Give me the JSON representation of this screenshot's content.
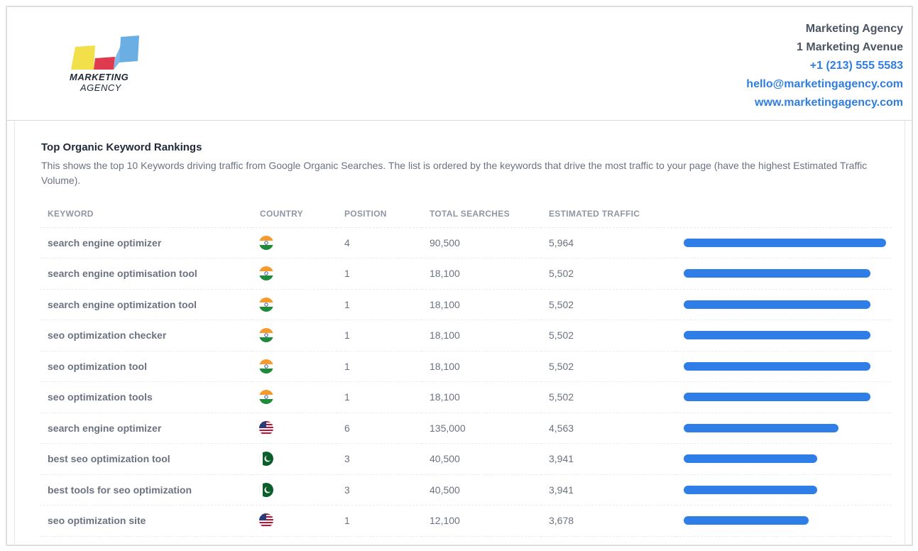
{
  "logo": {
    "line1": "MARKETING",
    "line2": "AGENCY",
    "colors": [
      "#f2e04a",
      "#e03a4e",
      "#6aaee4"
    ]
  },
  "contact": {
    "name": "Marketing Agency",
    "address": "1 Marketing Avenue",
    "phone": "+1 (213) 555 5583",
    "email": "hello@marketingagency.com",
    "website": "www.marketingagency.com"
  },
  "section": {
    "title": "Top Organic Keyword Rankings",
    "description": "This shows the top 10 Keywords driving traffic from Google Organic Searches. The list is ordered by the keywords that drive the most traffic to your page (have the highest Estimated Traffic Volume)."
  },
  "table": {
    "headers": {
      "keyword": "KEYWORD",
      "country": "COUNTRY",
      "position": "POSITION",
      "total": "TOTAL SEARCHES",
      "estimated": "ESTIMATED TRAFFIC"
    },
    "bar_color": "#2f7de6",
    "rows": [
      {
        "keyword": "search engine optimizer",
        "country": "in-flag-icon",
        "position": "4",
        "total": "90,500",
        "estimated": "5,964",
        "traffic": 5964
      },
      {
        "keyword": "search engine optimisation tool",
        "country": "in-flag-icon",
        "position": "1",
        "total": "18,100",
        "estimated": "5,502",
        "traffic": 5502
      },
      {
        "keyword": "search engine optimization tool",
        "country": "in-flag-icon",
        "position": "1",
        "total": "18,100",
        "estimated": "5,502",
        "traffic": 5502
      },
      {
        "keyword": "seo optimization checker",
        "country": "in-flag-icon",
        "position": "1",
        "total": "18,100",
        "estimated": "5,502",
        "traffic": 5502
      },
      {
        "keyword": "seo optimization tool",
        "country": "in-flag-icon",
        "position": "1",
        "total": "18,100",
        "estimated": "5,502",
        "traffic": 5502
      },
      {
        "keyword": "seo optimization tools",
        "country": "in-flag-icon",
        "position": "1",
        "total": "18,100",
        "estimated": "5,502",
        "traffic": 5502
      },
      {
        "keyword": "search engine optimizer",
        "country": "us-flag-icon",
        "position": "6",
        "total": "135,000",
        "estimated": "4,563",
        "traffic": 4563
      },
      {
        "keyword": "best seo optimization tool",
        "country": "pk-flag-icon",
        "position": "3",
        "total": "40,500",
        "estimated": "3,941",
        "traffic": 3941
      },
      {
        "keyword": "best tools for seo optimization",
        "country": "pk-flag-icon",
        "position": "3",
        "total": "40,500",
        "estimated": "3,941",
        "traffic": 3941
      },
      {
        "keyword": "seo optimization site",
        "country": "us-flag-icon",
        "position": "1",
        "total": "12,100",
        "estimated": "3,678",
        "traffic": 3678
      }
    ]
  }
}
